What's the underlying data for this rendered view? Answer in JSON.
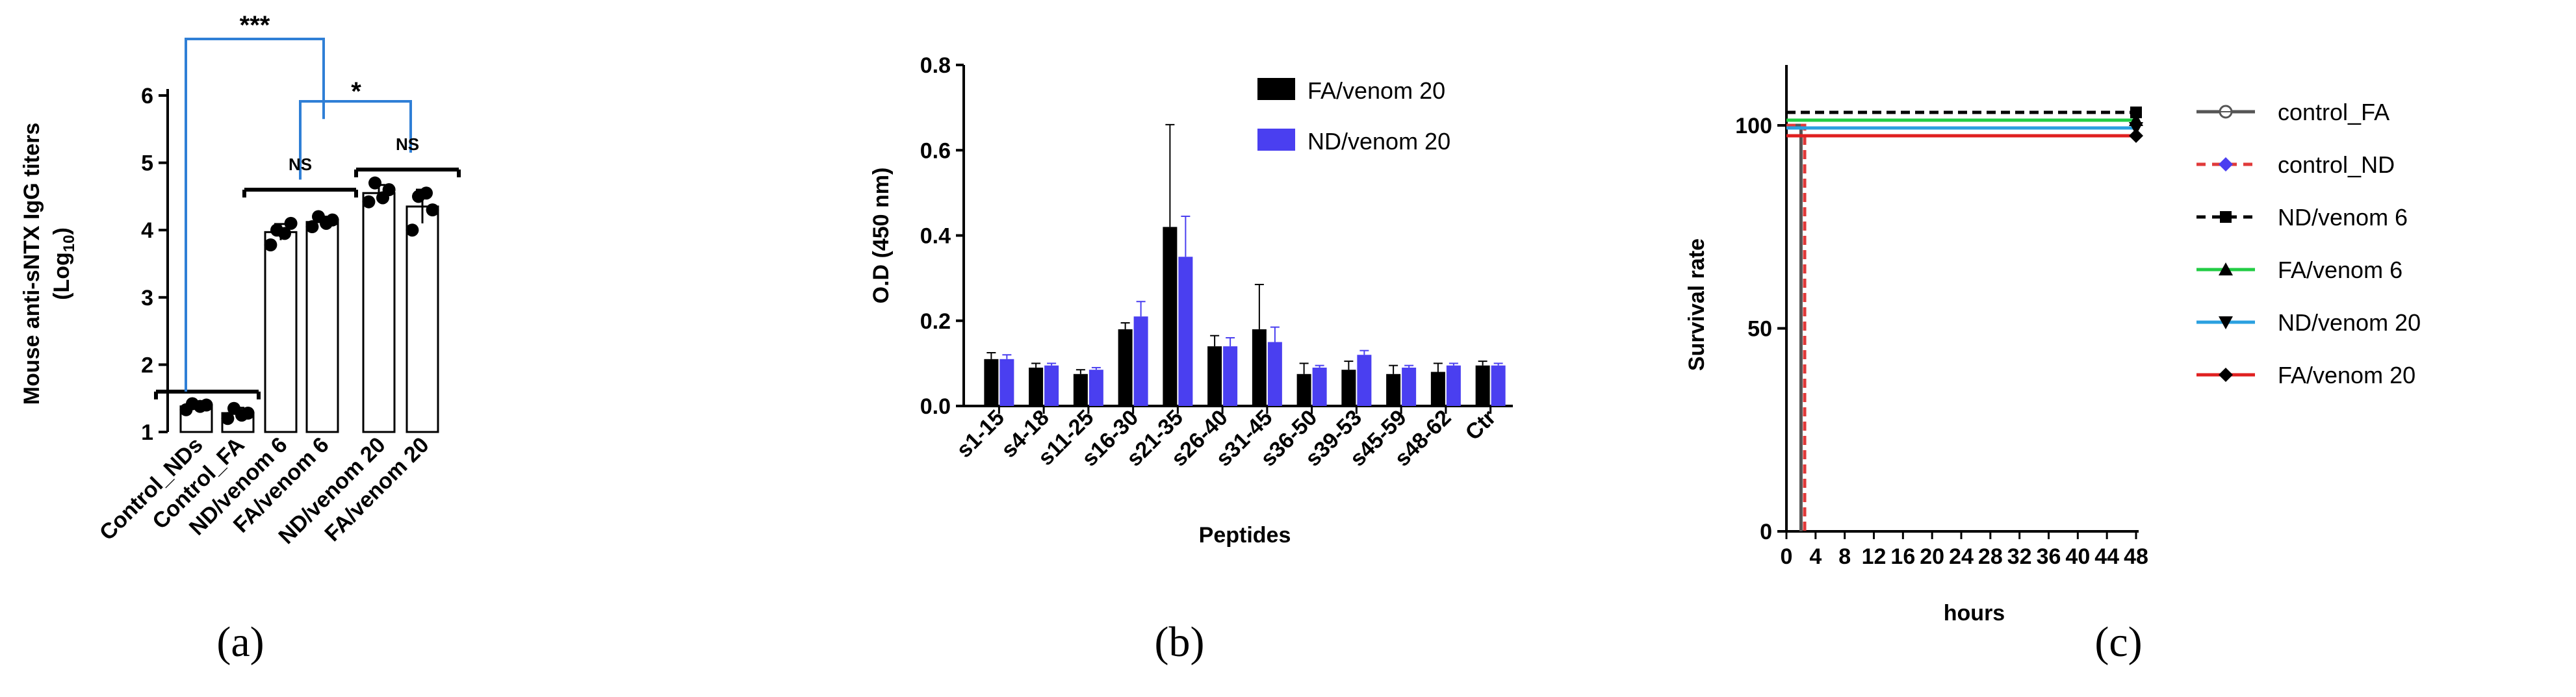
{
  "chart_data": [
    {
      "panel": "(a)",
      "type": "bar",
      "ylabel": "Mouse anti-sNTX IgG titers",
      "ylabel_line2_base": "(Log",
      "ylabel_line2_sub": "10",
      "ylabel_line2_end": ")",
      "ylim": [
        1,
        6
      ],
      "yticks": [
        "1",
        "2",
        "3",
        "4",
        "5",
        "6"
      ],
      "categories": [
        "Control_NDs",
        "Control_FA",
        "ND/venom 6",
        "FA/venom 6",
        "ND/venom 20",
        "FA/venom 20"
      ],
      "values": [
        1.38,
        1.28,
        3.97,
        4.12,
        4.55,
        4.35
      ],
      "errors": [
        0.06,
        0.08,
        0.12,
        0.08,
        0.12,
        0.25
      ],
      "points": [
        [
          1.33,
          1.4,
          1.42,
          1.38
        ],
        [
          1.2,
          1.28,
          1.35,
          1.25
        ],
        [
          3.78,
          4.1,
          4.0,
          3.95
        ],
        [
          4.05,
          4.15,
          4.2,
          4.1
        ],
        [
          4.42,
          4.6,
          4.7,
          4.48
        ],
        [
          4.0,
          4.3,
          4.5,
          4.55
        ]
      ],
      "significance": [
        {
          "label": "***",
          "from": "Control_NDs",
          "to": "ND/venom 6"
        },
        {
          "label": "*",
          "from": "ND/venom 6",
          "to": "ND/venom 20"
        },
        {
          "label": "NS",
          "from": "ND/venom 6",
          "to": "FA/venom 6"
        },
        {
          "label": "NS",
          "from": "ND/venom 20",
          "to": "FA/venom 20"
        }
      ],
      "bracket_color": "#2f7fd6"
    },
    {
      "panel": "(b)",
      "type": "bar",
      "xlabel": "Peptides",
      "ylabel": "O.D (450 nm)",
      "ylim": [
        0,
        0.8
      ],
      "yticks": [
        "0.0",
        "0.2",
        "0.4",
        "0.6",
        "0.8"
      ],
      "categories": [
        "s1-15",
        "s4-18",
        "s11-25",
        "s16-30",
        "s21-35",
        "s26-40",
        "s31-45",
        "s36-50",
        "s39-53",
        "s45-59",
        "s48-62",
        "Ctr"
      ],
      "series": [
        {
          "name": "FA/venom 20",
          "color": "#000000",
          "values": [
            0.11,
            0.09,
            0.075,
            0.18,
            0.42,
            0.14,
            0.18,
            0.075,
            0.085,
            0.075,
            0.08,
            0.095
          ],
          "errors": [
            0.015,
            0.01,
            0.01,
            0.015,
            0.24,
            0.025,
            0.105,
            0.025,
            0.02,
            0.02,
            0.02,
            0.01
          ]
        },
        {
          "name": "ND/venom 20",
          "color": "#4a3ff0",
          "values": [
            0.11,
            0.095,
            0.085,
            0.21,
            0.35,
            0.14,
            0.15,
            0.09,
            0.12,
            0.09,
            0.095,
            0.095
          ],
          "errors": [
            0.01,
            0.005,
            0.005,
            0.035,
            0.095,
            0.02,
            0.035,
            0.005,
            0.01,
            0.005,
            0.005,
            0.005
          ]
        }
      ]
    },
    {
      "panel": "(c)",
      "type": "line",
      "xlabel": "hours",
      "ylabel": "Survival rate",
      "xlim": [
        0,
        48
      ],
      "ylim": [
        0,
        100
      ],
      "xticks": [
        "0",
        "4",
        "8",
        "12",
        "16",
        "20",
        "24",
        "28",
        "32",
        "36",
        "40",
        "44",
        "48"
      ],
      "yticks": [
        "0",
        "50",
        "100"
      ],
      "series": [
        {
          "name": "control_FA",
          "color": "#555555",
          "dash": "solid",
          "marker": "circle-open",
          "survival": [
            [
              0,
              100
            ],
            [
              2,
              100
            ],
            [
              2,
              0
            ]
          ]
        },
        {
          "name": "control_ND",
          "color": "#e03a3a",
          "dash": "dash",
          "marker": "diamond-blue",
          "survival": [
            [
              0,
              100
            ],
            [
              2.5,
              100
            ],
            [
              2.5,
              0
            ]
          ]
        },
        {
          "name": "ND/venom 6",
          "color": "#000000",
          "dash": "dash",
          "marker": "square",
          "survival": [
            [
              0,
              100
            ],
            [
              48,
              100
            ]
          ]
        },
        {
          "name": "FA/venom 6",
          "color": "#22cc44",
          "dash": "solid",
          "marker": "triangle-up",
          "survival": [
            [
              0,
              100
            ],
            [
              48,
              100
            ]
          ]
        },
        {
          "name": "ND/venom 20",
          "color": "#2aa0e0",
          "dash": "solid",
          "marker": "triangle-down",
          "survival": [
            [
              0,
              100
            ],
            [
              48,
              100
            ]
          ]
        },
        {
          "name": "FA/venom 20",
          "color": "#e02020",
          "dash": "solid",
          "marker": "diamond",
          "survival": [
            [
              0,
              100
            ],
            [
              48,
              100
            ]
          ]
        }
      ]
    }
  ]
}
